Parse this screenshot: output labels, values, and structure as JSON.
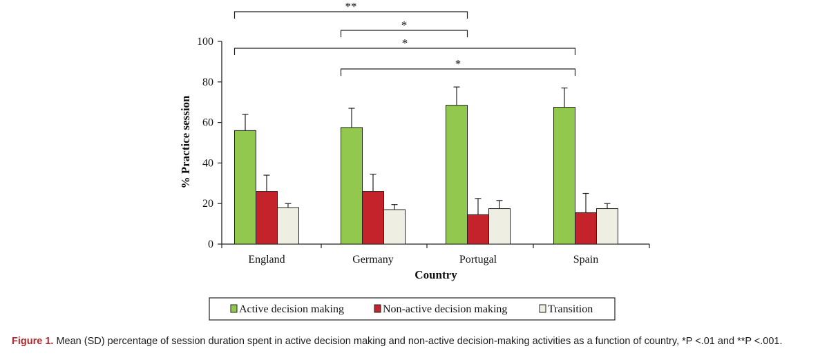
{
  "chart_data": {
    "type": "bar",
    "categories": [
      "England",
      "Germany",
      "Portugal",
      "Spain"
    ],
    "series": [
      {
        "name": "Active decision making",
        "values": [
          56,
          57.5,
          68.5,
          67.5
        ],
        "errors": [
          8,
          9.5,
          9,
          9.5
        ],
        "color": "#92c84e"
      },
      {
        "name": "Non-active decision making",
        "values": [
          26,
          26,
          14.5,
          15.5
        ],
        "errors": [
          8,
          8.5,
          8,
          9.5
        ],
        "color": "#c4232b"
      },
      {
        "name": "Transition",
        "values": [
          18,
          17,
          17.5,
          17.5
        ],
        "errors": [
          2,
          2.5,
          4,
          2.5
        ],
        "color": "#eeeee3"
      }
    ],
    "xlabel": "Country",
    "ylabel": "% Practice session",
    "ylim": [
      0,
      100
    ],
    "yticks": [
      "0",
      "20",
      "40",
      "60",
      "80",
      "100"
    ],
    "legend_position": "bottom",
    "significance": [
      {
        "from": "England",
        "to": "Portugal",
        "label": "**"
      },
      {
        "from": "Germany",
        "to": "Portugal",
        "label": "*"
      },
      {
        "from": "England",
        "to": "Spain",
        "label": "*"
      },
      {
        "from": "Germany",
        "to": "Spain",
        "label": "*"
      }
    ]
  },
  "caption": {
    "label": "Figure 1.",
    "text": " Mean (SD) percentage of session duration spent in active decision making and non-active decision-making activities as a function of country, *P <.01 and **P <.001."
  }
}
